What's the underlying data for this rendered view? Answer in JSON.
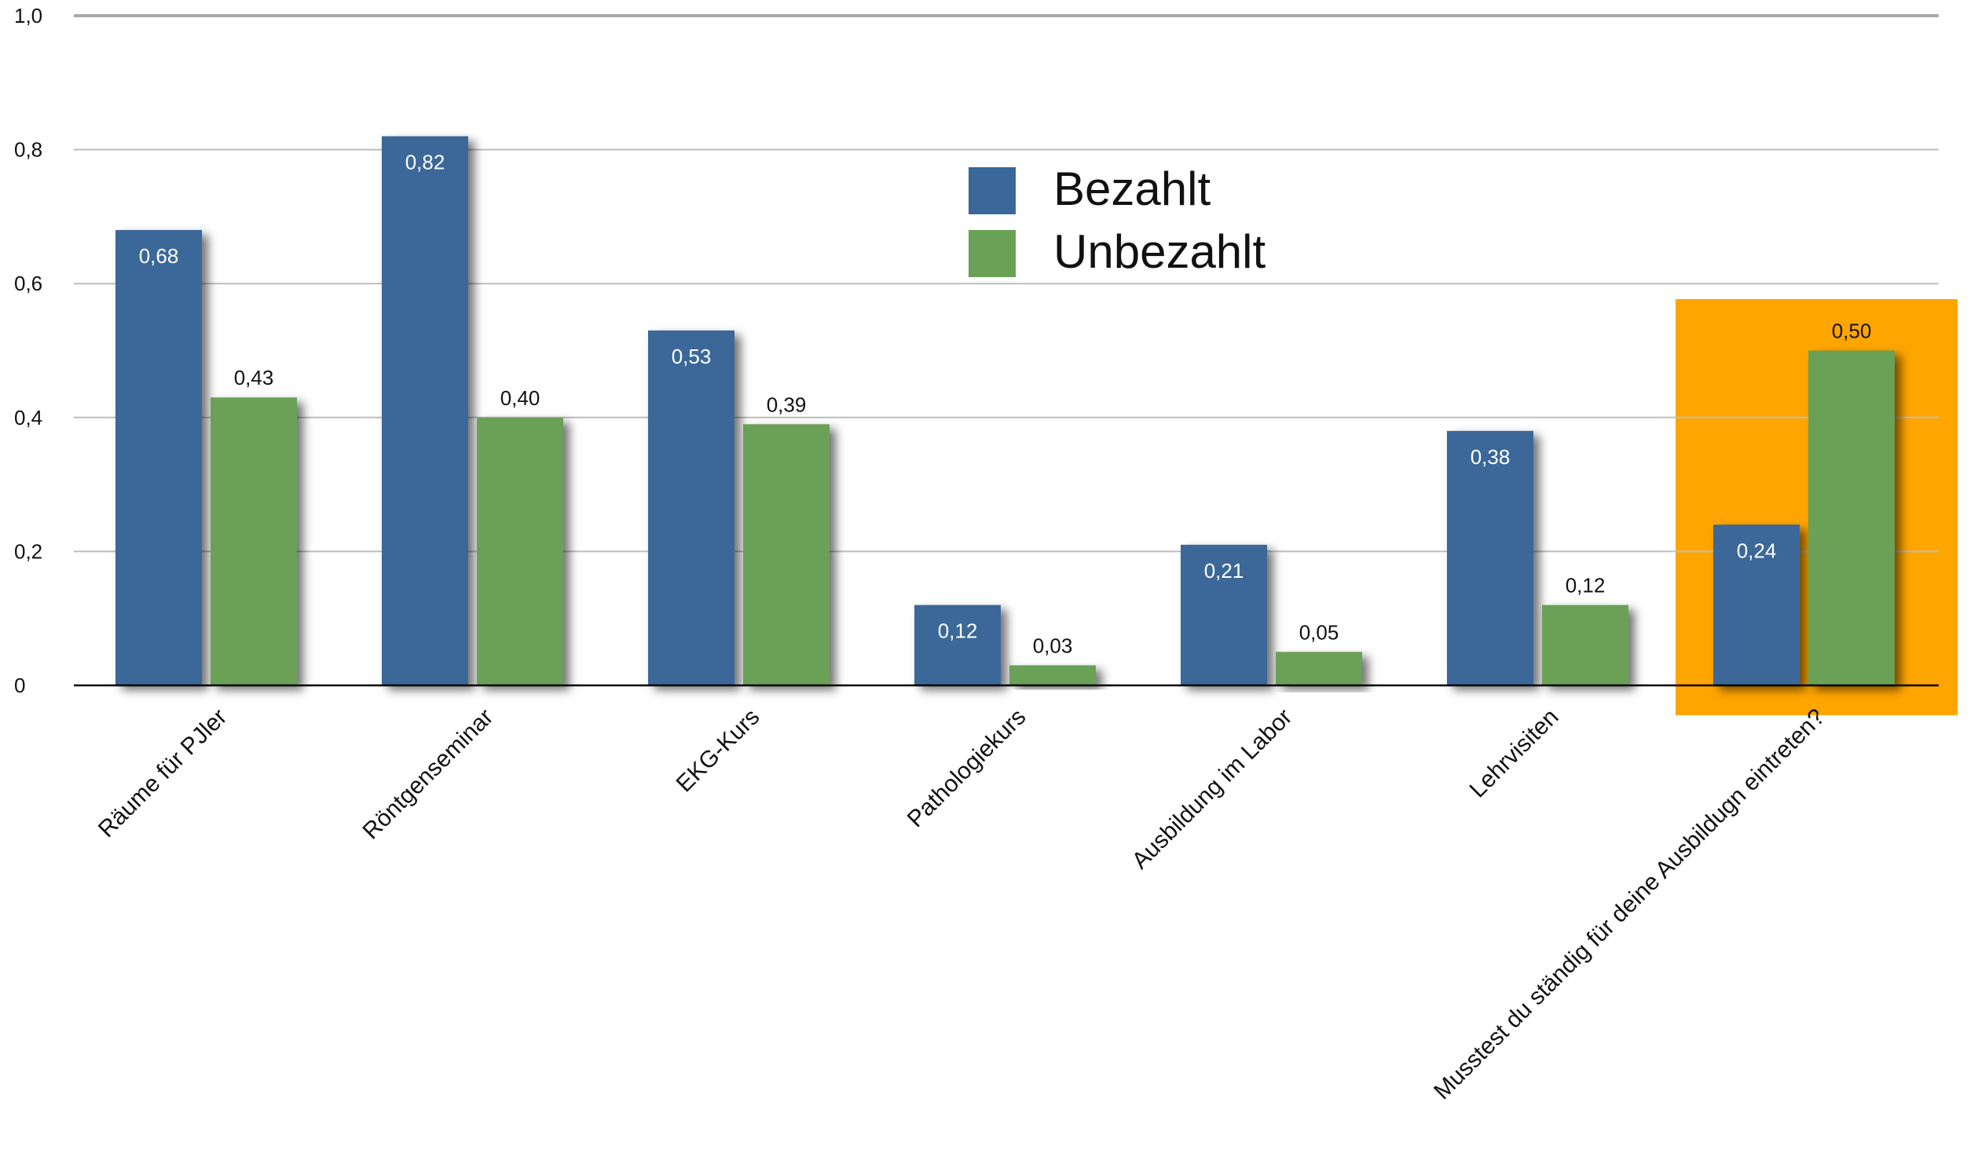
{
  "chart_data": {
    "type": "bar",
    "title": "",
    "xlabel": "",
    "ylabel": "",
    "ylim": [
      0,
      1.0
    ],
    "y_ticks": [
      {
        "value": 0,
        "label": "0"
      },
      {
        "value": 0.2,
        "label": "0,2"
      },
      {
        "value": 0.4,
        "label": "0,4"
      },
      {
        "value": 0.6,
        "label": "0,6"
      },
      {
        "value": 0.8,
        "label": "0,8"
      },
      {
        "value": 1.0,
        "label": "1,0"
      }
    ],
    "grid": true,
    "legend_position": "top-center",
    "categories": [
      "Räume für PJler",
      "Röntgenseminar",
      "EKG-Kurs",
      "Pathologiekurs",
      "Ausbildung im Labor",
      "Lehrvisiten",
      "Musstest du ständig für deine Ausbildugn eintreten?"
    ],
    "highlight_category_index": 6,
    "highlight_color": "#FFA500",
    "series": [
      {
        "name": "Bezahlt",
        "color": "#3A6799",
        "values": [
          0.68,
          0.82,
          0.53,
          0.12,
          0.21,
          0.38,
          0.24
        ],
        "labels": [
          "0,68",
          "0,82",
          "0,53",
          "0,12",
          "0,21",
          "0,38",
          "0,24"
        ]
      },
      {
        "name": "Unbezahlt",
        "color": "#6AA157",
        "values": [
          0.43,
          0.4,
          0.39,
          0.03,
          0.05,
          0.12,
          0.5
        ],
        "labels": [
          "0,43",
          "0,40",
          "0,39",
          "0,03",
          "0,05",
          "0,12",
          "0,50"
        ]
      }
    ]
  }
}
